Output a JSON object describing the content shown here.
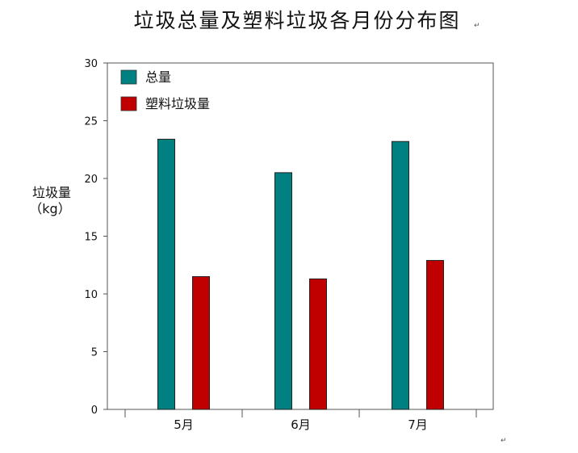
{
  "chart_data": {
    "type": "bar",
    "title": "垃圾总量及塑料垃圾各月份分布图",
    "ylabel": [
      "垃圾量",
      "（kg）"
    ],
    "xlabel": "",
    "categories": [
      "5月",
      "6月",
      "7月"
    ],
    "series": [
      {
        "name": "总量",
        "values": [
          23.4,
          20.5,
          23.2
        ],
        "color": "#008080"
      },
      {
        "name": "塑料垃圾量",
        "values": [
          11.5,
          11.3,
          12.9
        ],
        "color": "#c00000"
      }
    ],
    "ylim": [
      0,
      30
    ],
    "yticks": [
      0,
      5,
      10,
      15,
      20,
      25,
      30
    ],
    "grid": false,
    "legend_position": "top-left"
  },
  "marks": {
    "title_mark": "↵",
    "footer_mark": "↵"
  }
}
